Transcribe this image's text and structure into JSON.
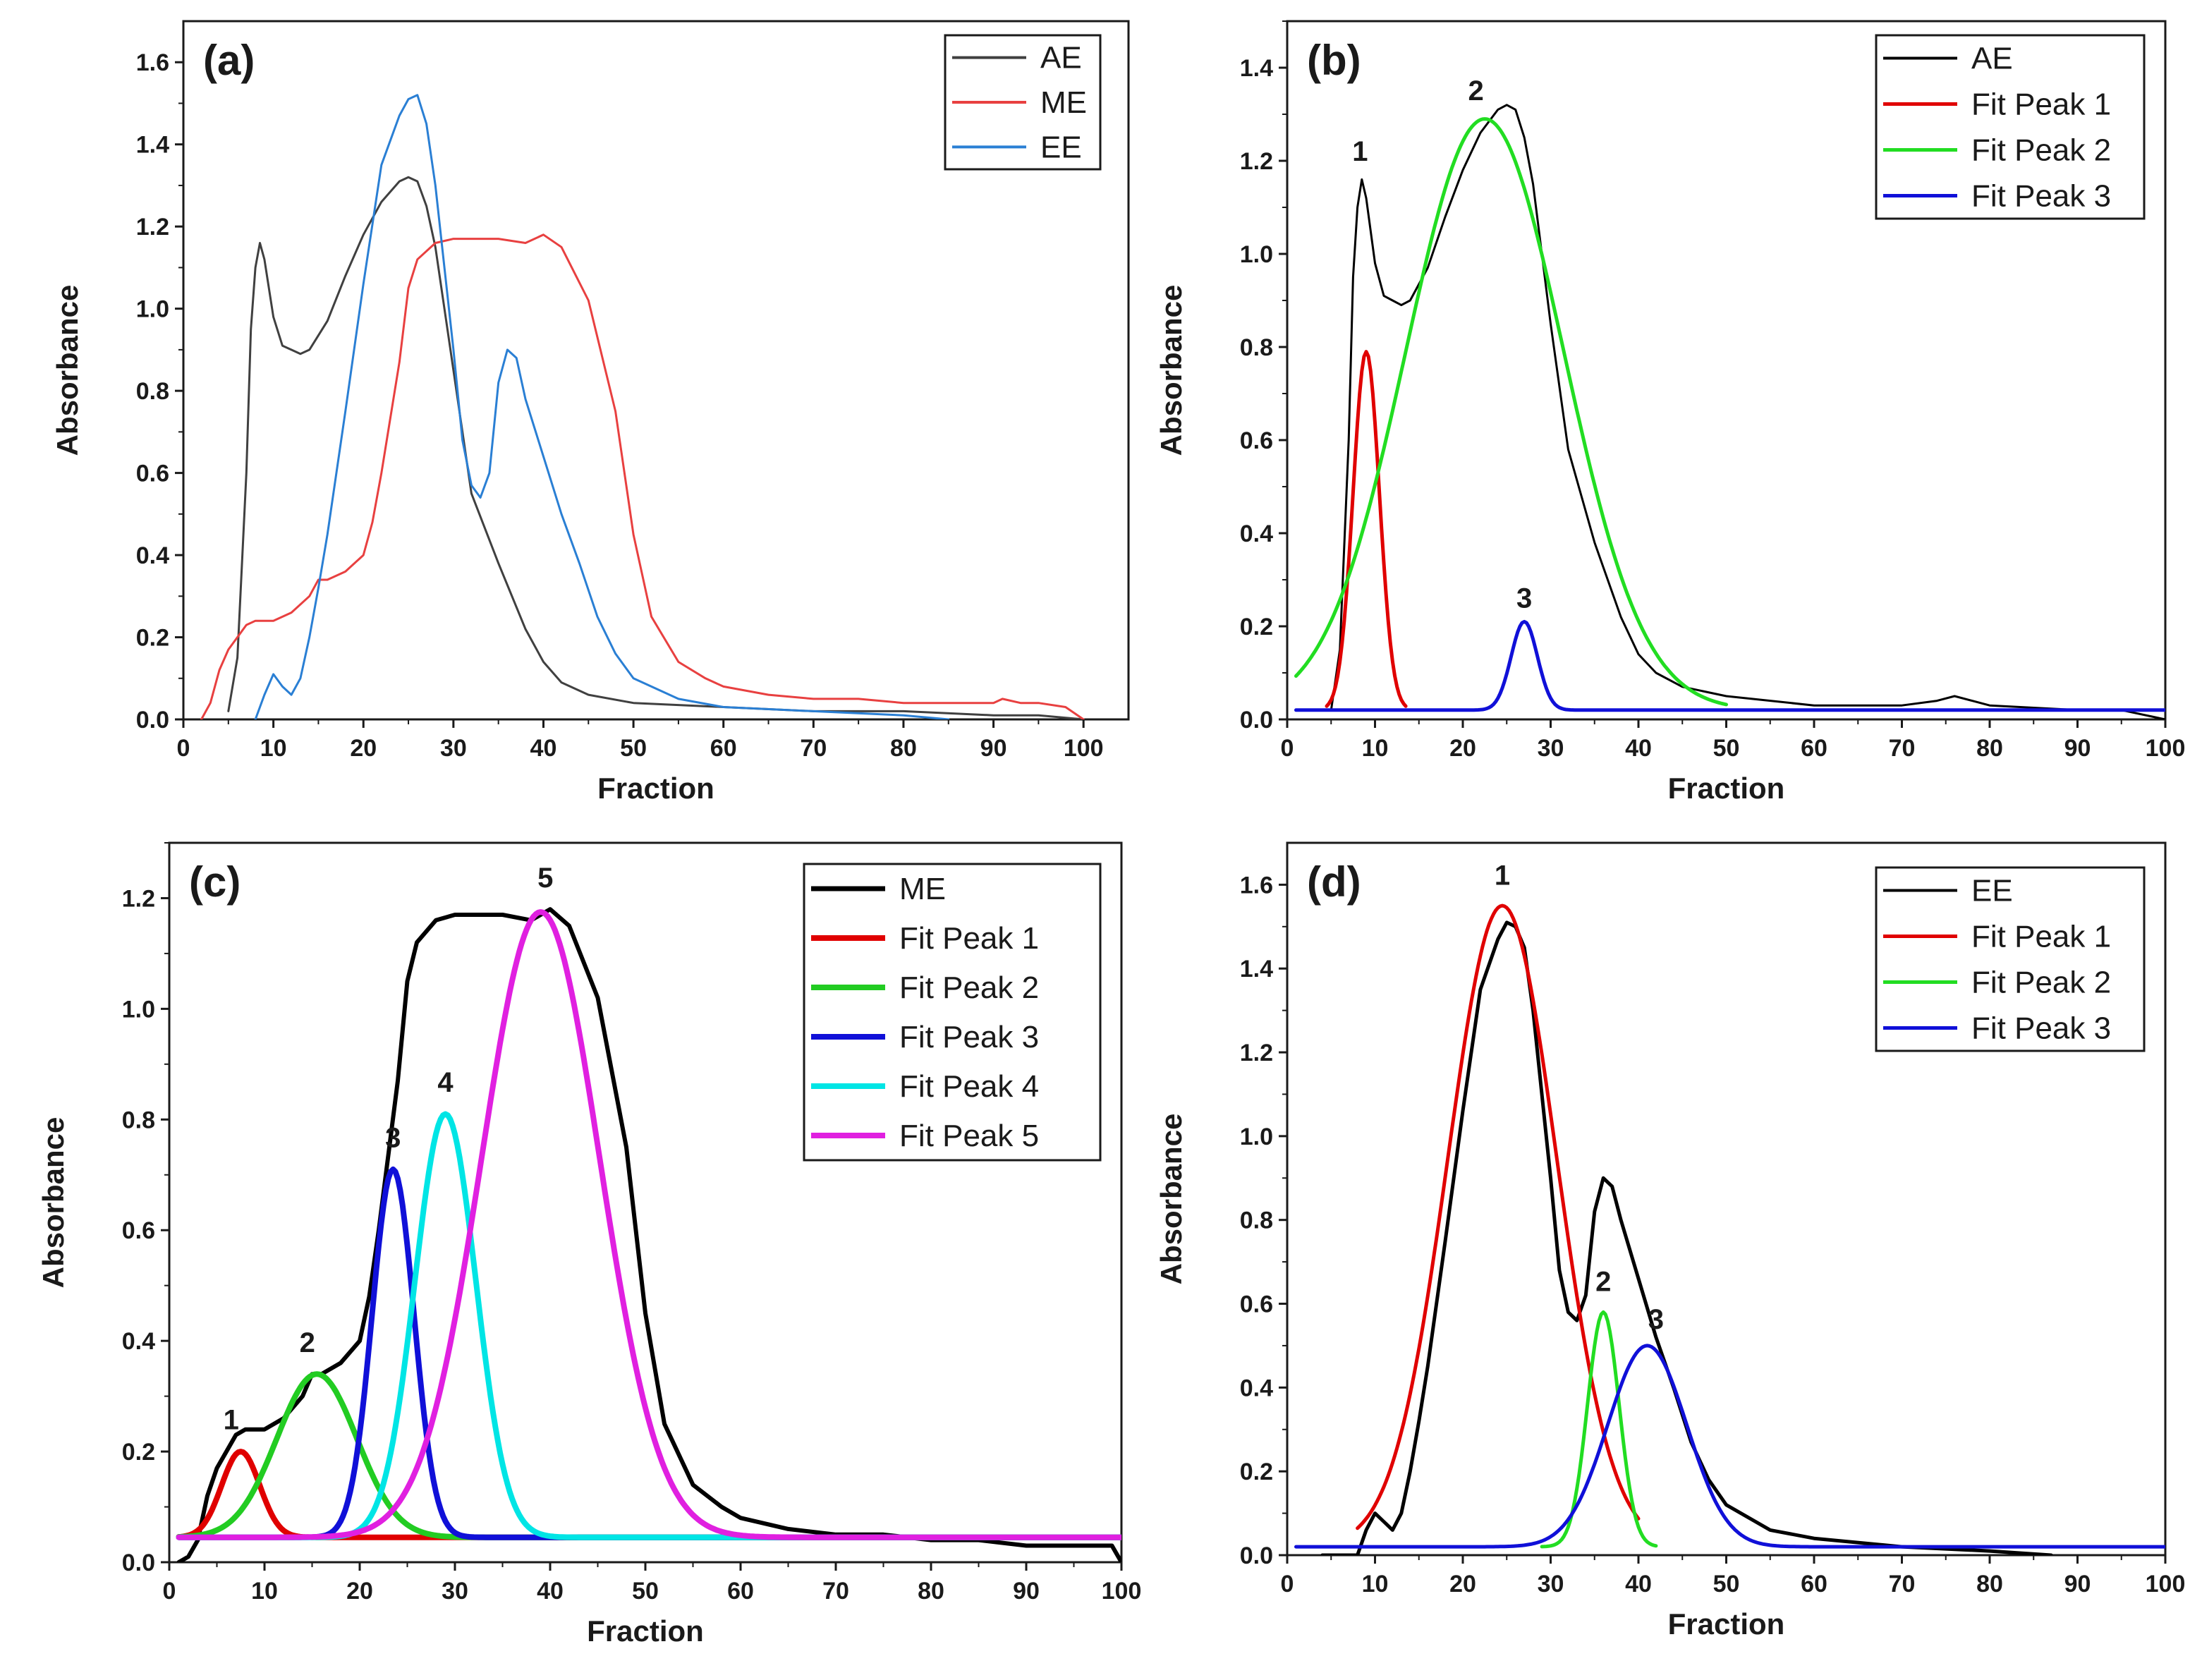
{
  "chart_data": [
    {
      "id": "a",
      "type": "line",
      "panel_label": "(a)",
      "xlabel": "Fraction",
      "ylabel": "Absorbance",
      "xlim": [
        0,
        105
      ],
      "ylim": [
        0,
        1.7
      ],
      "xticks": [
        0,
        10,
        20,
        30,
        40,
        50,
        60,
        70,
        80,
        90,
        100
      ],
      "yticks": [
        0.0,
        0.2,
        0.4,
        0.6,
        0.8,
        1.0,
        1.2,
        1.4,
        1.6
      ],
      "xtick_labels": [
        "0",
        "10",
        "20",
        "30",
        "40",
        "50",
        "60",
        "70",
        "80",
        "90",
        "100"
      ],
      "ytick_labels": [
        "0.0",
        "0.2",
        "0.4",
        "0.6",
        "0.8",
        "1.0",
        "1.2",
        "1.4",
        "1.6"
      ],
      "legend_position": "top-right",
      "series": [
        {
          "name": "AE",
          "color": "#404040",
          "x": [
            5,
            6,
            7,
            7.5,
            8,
            8.5,
            9,
            10,
            11,
            12,
            13,
            14,
            16,
            18,
            20,
            22,
            24,
            25,
            26,
            27,
            28,
            30,
            32,
            35,
            38,
            40,
            42,
            45,
            50,
            60,
            70,
            80,
            90,
            95,
            100
          ],
          "y": [
            0.02,
            0.15,
            0.6,
            0.95,
            1.1,
            1.16,
            1.12,
            0.98,
            0.91,
            0.9,
            0.89,
            0.9,
            0.97,
            1.08,
            1.18,
            1.26,
            1.31,
            1.32,
            1.31,
            1.25,
            1.15,
            0.85,
            0.55,
            0.38,
            0.22,
            0.14,
            0.09,
            0.06,
            0.04,
            0.03,
            0.02,
            0.02,
            0.01,
            0.01,
            0.0
          ]
        },
        {
          "name": "ME",
          "color": "#e84040",
          "x": [
            2,
            3,
            4,
            5,
            6,
            7,
            8,
            9,
            10,
            12,
            14,
            15,
            16,
            18,
            20,
            21,
            22,
            24,
            25,
            26,
            28,
            30,
            35,
            38,
            40,
            42,
            45,
            48,
            50,
            52,
            55,
            58,
            60,
            65,
            70,
            75,
            80,
            85,
            90,
            91,
            93,
            95,
            98,
            100
          ],
          "y": [
            0.0,
            0.04,
            0.12,
            0.17,
            0.2,
            0.23,
            0.24,
            0.24,
            0.24,
            0.26,
            0.3,
            0.34,
            0.34,
            0.36,
            0.4,
            0.48,
            0.6,
            0.87,
            1.05,
            1.12,
            1.16,
            1.17,
            1.17,
            1.16,
            1.18,
            1.15,
            1.02,
            0.75,
            0.45,
            0.25,
            0.14,
            0.1,
            0.08,
            0.06,
            0.05,
            0.05,
            0.04,
            0.04,
            0.04,
            0.05,
            0.04,
            0.04,
            0.03,
            0.0
          ]
        },
        {
          "name": "EE",
          "color": "#2a7fd4",
          "x": [
            8,
            9,
            10,
            11,
            12,
            13,
            14,
            15,
            16,
            18,
            20,
            22,
            24,
            25,
            26,
            27,
            28,
            30,
            31,
            32,
            33,
            34,
            35,
            36,
            37,
            38,
            40,
            42,
            44,
            46,
            48,
            50,
            55,
            60,
            70,
            80,
            85
          ],
          "y": [
            0.0,
            0.06,
            0.11,
            0.08,
            0.06,
            0.1,
            0.2,
            0.32,
            0.45,
            0.75,
            1.06,
            1.35,
            1.47,
            1.51,
            1.52,
            1.45,
            1.3,
            0.9,
            0.68,
            0.57,
            0.54,
            0.6,
            0.82,
            0.9,
            0.88,
            0.78,
            0.64,
            0.5,
            0.38,
            0.25,
            0.16,
            0.1,
            0.05,
            0.03,
            0.02,
            0.01,
            0.0
          ]
        }
      ]
    },
    {
      "id": "b",
      "type": "line",
      "panel_label": "(b)",
      "xlabel": "Fraction",
      "ylabel": "Absorbance",
      "xlim": [
        0,
        100
      ],
      "ylim": [
        0,
        1.5
      ],
      "xticks": [
        0,
        10,
        20,
        30,
        40,
        50,
        60,
        70,
        80,
        90,
        100
      ],
      "yticks": [
        0.0,
        0.2,
        0.4,
        0.6,
        0.8,
        1.0,
        1.2,
        1.4
      ],
      "xtick_labels": [
        "0",
        "10",
        "20",
        "30",
        "40",
        "50",
        "60",
        "70",
        "80",
        "90",
        "100"
      ],
      "ytick_labels": [
        "0.0",
        "0.2",
        "0.4",
        "0.6",
        "0.8",
        "1.0",
        "1.2",
        "1.4"
      ],
      "legend_position": "top-right",
      "series": [
        {
          "name": "AE",
          "color": "#000000",
          "x": [
            5,
            6,
            7,
            7.5,
            8,
            8.5,
            9,
            10,
            11,
            12,
            13,
            14,
            16,
            18,
            20,
            22,
            24,
            25,
            26,
            27,
            28,
            30,
            32,
            35,
            38,
            40,
            42,
            45,
            50,
            60,
            70,
            74,
            76,
            78,
            80,
            90,
            95,
            100
          ],
          "y": [
            0.02,
            0.15,
            0.6,
            0.95,
            1.1,
            1.16,
            1.12,
            0.98,
            0.91,
            0.9,
            0.89,
            0.9,
            0.97,
            1.08,
            1.18,
            1.26,
            1.31,
            1.32,
            1.31,
            1.25,
            1.15,
            0.85,
            0.58,
            0.38,
            0.22,
            0.14,
            0.1,
            0.07,
            0.05,
            0.03,
            0.03,
            0.04,
            0.05,
            0.04,
            0.03,
            0.02,
            0.02,
            0.0
          ]
        },
        {
          "name": "Fit Peak 1",
          "color": "#e00000",
          "gauss": {
            "center": 9,
            "height": 0.77,
            "sigma": 1.5,
            "baseline": 0.02,
            "from": 4.5,
            "to": 13.5
          }
        },
        {
          "name": "Fit Peak 2",
          "color": "#22dd22",
          "gauss": {
            "center": 22.5,
            "height": 1.27,
            "sigma": 9.0,
            "baseline": 0.02,
            "from": 1,
            "to": 50
          }
        },
        {
          "name": "Fit Peak 3",
          "color": "#1010d8",
          "gauss": {
            "center": 27,
            "height": 0.19,
            "sigma": 1.5,
            "baseline": 0.02,
            "from": 1,
            "to": 100
          }
        }
      ],
      "annotations": [
        {
          "text": "1",
          "x": 8.3,
          "y": 1.2
        },
        {
          "text": "2",
          "x": 21.5,
          "y": 1.33
        },
        {
          "text": "3",
          "x": 27,
          "y": 0.24
        }
      ]
    },
    {
      "id": "c",
      "type": "line",
      "panel_label": "(c)",
      "xlabel": "Fraction",
      "ylabel": "Absorbance",
      "xlim": [
        0,
        100
      ],
      "ylim": [
        0,
        1.3
      ],
      "xticks": [
        0,
        10,
        20,
        30,
        40,
        50,
        60,
        70,
        80,
        90,
        100
      ],
      "yticks": [
        0.0,
        0.2,
        0.4,
        0.6,
        0.8,
        1.0,
        1.2
      ],
      "xtick_labels": [
        "0",
        "10",
        "20",
        "30",
        "40",
        "50",
        "60",
        "70",
        "80",
        "90",
        "100"
      ],
      "ytick_labels": [
        "0.0",
        "0.2",
        "0.4",
        "0.6",
        "0.8",
        "1.0",
        "1.2"
      ],
      "legend_position": "top-right",
      "series": [
        {
          "name": "ME",
          "color": "#000000",
          "x": [
            1,
            2,
            3,
            4,
            5,
            6,
            7,
            8,
            9,
            10,
            12,
            14,
            15,
            16,
            18,
            20,
            21,
            22,
            24,
            25,
            26,
            28,
            30,
            35,
            38,
            40,
            42,
            45,
            48,
            50,
            52,
            55,
            58,
            60,
            65,
            70,
            75,
            80,
            85,
            90,
            95,
            99,
            100
          ],
          "y": [
            0.0,
            0.01,
            0.04,
            0.12,
            0.17,
            0.2,
            0.23,
            0.24,
            0.24,
            0.24,
            0.26,
            0.3,
            0.34,
            0.34,
            0.36,
            0.4,
            0.48,
            0.6,
            0.87,
            1.05,
            1.12,
            1.16,
            1.17,
            1.17,
            1.16,
            1.18,
            1.15,
            1.02,
            0.75,
            0.45,
            0.25,
            0.14,
            0.1,
            0.08,
            0.06,
            0.05,
            0.05,
            0.04,
            0.04,
            0.03,
            0.03,
            0.03,
            0.0
          ]
        },
        {
          "name": "Fit Peak 1",
          "color": "#e00000",
          "gauss": {
            "center": 7.5,
            "height": 0.155,
            "sigma": 2.0,
            "baseline": 0.045,
            "from": 1,
            "to": 100
          }
        },
        {
          "name": "Fit Peak 2",
          "color": "#22cc22",
          "gauss": {
            "center": 15.5,
            "height": 0.295,
            "sigma": 4.2,
            "baseline": 0.045,
            "from": 1,
            "to": 100
          }
        },
        {
          "name": "Fit Peak 3",
          "color": "#1010d8",
          "gauss": {
            "center": 23.5,
            "height": 0.665,
            "sigma": 2.2,
            "baseline": 0.045,
            "from": 1,
            "to": 100
          }
        },
        {
          "name": "Fit Peak 4",
          "color": "#00e5e5",
          "gauss": {
            "center": 29,
            "height": 0.765,
            "sigma": 3.2,
            "baseline": 0.045,
            "from": 1,
            "to": 100
          }
        },
        {
          "name": "Fit Peak 5",
          "color": "#e020e0",
          "gauss": {
            "center": 39,
            "height": 1.13,
            "sigma": 6.2,
            "baseline": 0.045,
            "from": 1,
            "to": 100
          }
        }
      ],
      "annotations": [
        {
          "text": "1",
          "x": 6.5,
          "y": 0.24
        },
        {
          "text": "2",
          "x": 14.5,
          "y": 0.38
        },
        {
          "text": "3",
          "x": 23.5,
          "y": 0.75
        },
        {
          "text": "4",
          "x": 29,
          "y": 0.85
        },
        {
          "text": "5",
          "x": 39.5,
          "y": 1.22
        }
      ]
    },
    {
      "id": "d",
      "type": "line",
      "panel_label": "(d)",
      "xlabel": "Fraction",
      "ylabel": "Absorbance",
      "xlim": [
        0,
        100
      ],
      "ylim": [
        0,
        1.7
      ],
      "xticks": [
        0,
        10,
        20,
        30,
        40,
        50,
        60,
        70,
        80,
        90,
        100
      ],
      "yticks": [
        0.0,
        0.2,
        0.4,
        0.6,
        0.8,
        1.0,
        1.2,
        1.4,
        1.6
      ],
      "xtick_labels": [
        "0",
        "10",
        "20",
        "30",
        "40",
        "50",
        "60",
        "70",
        "80",
        "90",
        "100"
      ],
      "ytick_labels": [
        "0.0",
        "0.2",
        "0.4",
        "0.6",
        "0.8",
        "1.0",
        "1.2",
        "1.4",
        "1.6"
      ],
      "legend_position": "top-right",
      "series": [
        {
          "name": "EE",
          "color": "#000000",
          "x": [
            4,
            8,
            9,
            10,
            11,
            12,
            13,
            14,
            15,
            16,
            18,
            20,
            22,
            24,
            25,
            26,
            27,
            28,
            30,
            31,
            32,
            33,
            34,
            35,
            36,
            37,
            38,
            40,
            42,
            44,
            46,
            48,
            50,
            55,
            60,
            70,
            80,
            87
          ],
          "y": [
            0.0,
            0.0,
            0.06,
            0.1,
            0.08,
            0.06,
            0.1,
            0.2,
            0.32,
            0.45,
            0.75,
            1.06,
            1.35,
            1.47,
            1.51,
            1.5,
            1.45,
            1.3,
            0.9,
            0.68,
            0.58,
            0.56,
            0.62,
            0.82,
            0.9,
            0.88,
            0.8,
            0.66,
            0.52,
            0.4,
            0.27,
            0.18,
            0.12,
            0.06,
            0.04,
            0.02,
            0.01,
            0.0
          ]
        },
        {
          "name": "Fit Peak 1",
          "color": "#e00000",
          "gauss": {
            "center": 24.5,
            "height": 1.53,
            "sigma": 6.2,
            "baseline": 0.02,
            "from": 8,
            "to": 40
          }
        },
        {
          "name": "Fit Peak 2",
          "color": "#22dd22",
          "gauss": {
            "center": 36,
            "height": 0.56,
            "sigma": 1.8,
            "baseline": 0.02,
            "from": 29,
            "to": 42
          }
        },
        {
          "name": "Fit Peak 3",
          "color": "#1010d8",
          "gauss": {
            "center": 41,
            "height": 0.48,
            "sigma": 4.5,
            "baseline": 0.02,
            "from": 1,
            "to": 100
          }
        }
      ],
      "annotations": [
        {
          "text": "1",
          "x": 24.5,
          "y": 1.6
        },
        {
          "text": "2",
          "x": 36,
          "y": 0.63
        },
        {
          "text": "3",
          "x": 42,
          "y": 0.54
        }
      ]
    }
  ]
}
